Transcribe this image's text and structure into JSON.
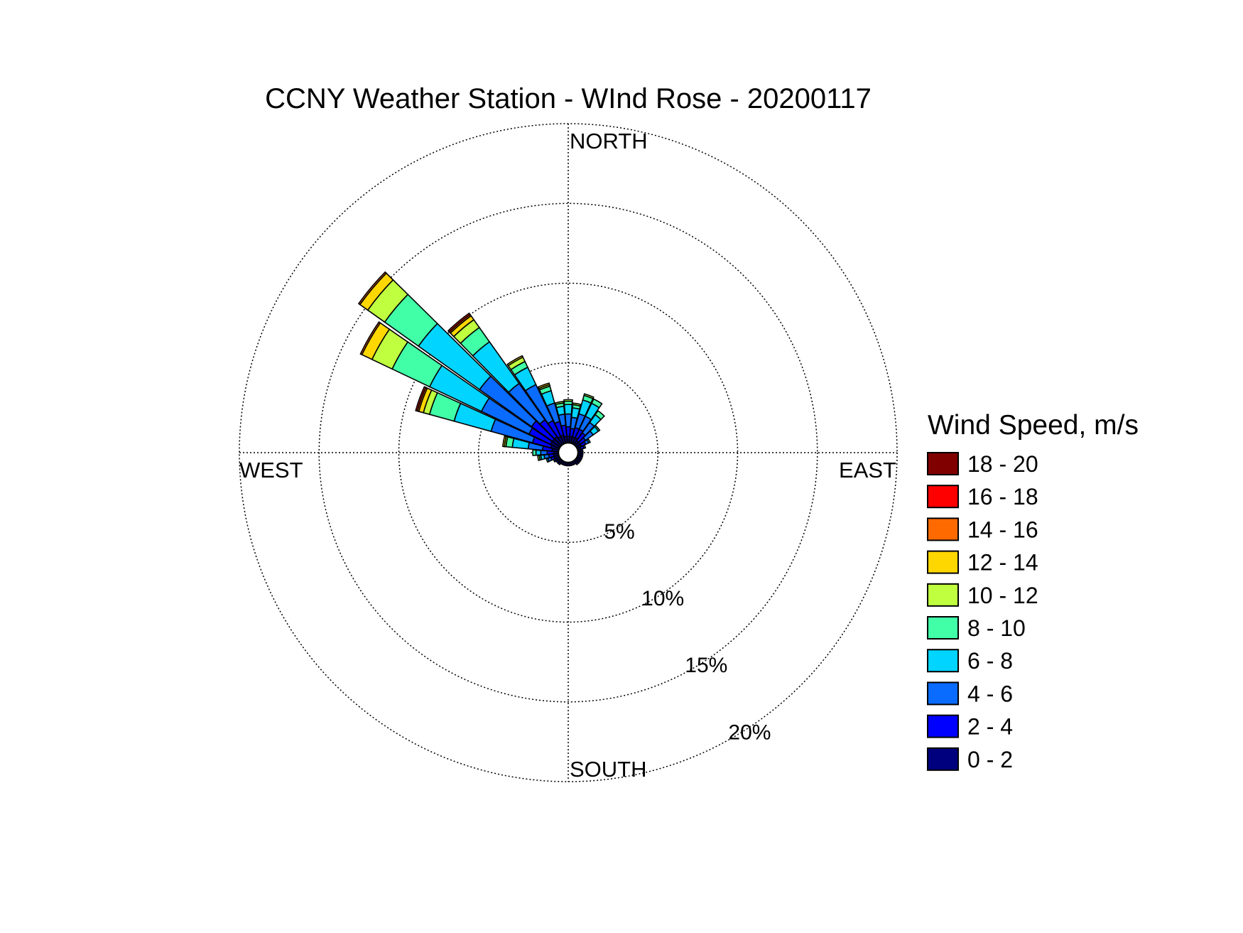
{
  "chart_data": {
    "type": "wind-rose",
    "title": "CCNY Weather Station - WInd Rose - 20200117",
    "directions": {
      "north": "NORTH",
      "east": "EAST",
      "south": "SOUTH",
      "west": "WEST"
    },
    "radial_ticks": [
      {
        "value": 5,
        "label": "5%"
      },
      {
        "value": 10,
        "label": "10%"
      },
      {
        "value": 15,
        "label": "15%"
      },
      {
        "value": 20,
        "label": "20%"
      }
    ],
    "radial_max": 20,
    "grid": true,
    "legend": {
      "title": "Wind Speed, m/s",
      "placement": "right",
      "bins": [
        {
          "label": "18 - 20",
          "color": "#800000"
        },
        {
          "label": "16 - 18",
          "color": "#ff0000"
        },
        {
          "label": "14 - 16",
          "color": "#ff6a00"
        },
        {
          "label": "12 - 14",
          "color": "#ffd700"
        },
        {
          "label": "10 - 12",
          "color": "#bfff3f"
        },
        {
          "label": "8 - 10",
          "color": "#40ffa6"
        },
        {
          "label": "6 - 8",
          "color": "#00d4ff"
        },
        {
          "label": "4 - 6",
          "color": "#0a6bff"
        },
        {
          "label": "2 - 4",
          "color": "#0000ff"
        },
        {
          "label": "0 - 2",
          "color": "#00007f"
        }
      ]
    },
    "bin_order_inner_to_outer": [
      "0 - 2",
      "2 - 4",
      "4 - 6",
      "6 - 8",
      "8 - 10",
      "10 - 12",
      "12 - 14",
      "14 - 16",
      "16 - 18",
      "18 - 20"
    ],
    "sectors": [
      {
        "direction_deg": 270,
        "segments": [
          0.3,
          0.4,
          0.4,
          0.3,
          0.2,
          0.0,
          0.0,
          0,
          0,
          0
        ]
      },
      {
        "direction_deg": 280,
        "segments": [
          0.4,
          0.6,
          0.9,
          1.0,
          0.4,
          0.1,
          0.1,
          0,
          0,
          0
        ]
      },
      {
        "direction_deg": 290,
        "segments": [
          0.5,
          1.2,
          2.7,
          2.4,
          1.6,
          0.4,
          0.3,
          0.1,
          0.1,
          0
        ]
      },
      {
        "direction_deg": 300,
        "segments": [
          0.6,
          1.5,
          3.3,
          3.6,
          2.6,
          1.4,
          0.7,
          0.1,
          0.0,
          0
        ]
      },
      {
        "direction_deg": 310,
        "segments": [
          0.6,
          1.6,
          4.0,
          4.7,
          2.6,
          1.3,
          0.6,
          0.1,
          0.0,
          0
        ]
      },
      {
        "direction_deg": 320,
        "segments": [
          0.6,
          1.3,
          2.8,
          3.2,
          1.1,
          0.6,
          0.3,
          0.1,
          0.1,
          0
        ]
      },
      {
        "direction_deg": 330,
        "segments": [
          0.5,
          1.1,
          2.5,
          1.2,
          0.4,
          0.3,
          0.1,
          0,
          0,
          0
        ]
      },
      {
        "direction_deg": 340,
        "segments": [
          0.5,
          0.9,
          1.2,
          0.8,
          0.3,
          0.1,
          0.1,
          0,
          0,
          0
        ]
      },
      {
        "direction_deg": 350,
        "segments": [
          0.4,
          0.7,
          0.7,
          0.5,
          0.2,
          0.1,
          0,
          0,
          0,
          0
        ]
      },
      {
        "direction_deg": 0,
        "segments": [
          0.4,
          0.6,
          0.8,
          0.6,
          0.2,
          0.1,
          0,
          0,
          0,
          0
        ]
      },
      {
        "direction_deg": 10,
        "segments": [
          0.4,
          0.5,
          0.7,
          0.6,
          0.2,
          0.1,
          0,
          0,
          0,
          0
        ]
      },
      {
        "direction_deg": 20,
        "segments": [
          0.4,
          0.6,
          0.9,
          0.9,
          0.3,
          0.1,
          0,
          0,
          0,
          0
        ]
      },
      {
        "direction_deg": 30,
        "segments": [
          0.4,
          0.6,
          0.9,
          0.9,
          0.3,
          0.0,
          0,
          0,
          0,
          0
        ]
      },
      {
        "direction_deg": 40,
        "segments": [
          0.3,
          0.6,
          0.8,
          0.6,
          0.3,
          0,
          0,
          0,
          0,
          0
        ]
      },
      {
        "direction_deg": 50,
        "segments": [
          0.3,
          0.4,
          0.6,
          0.4,
          0.1,
          0,
          0,
          0,
          0,
          0
        ]
      },
      {
        "direction_deg": 60,
        "segments": [
          0.3,
          0.3,
          0.2,
          0.1,
          0,
          0,
          0,
          0,
          0,
          0
        ]
      },
      {
        "direction_deg": 70,
        "segments": [
          0.2,
          0.2,
          0.1,
          0,
          0,
          0,
          0,
          0,
          0,
          0
        ]
      },
      {
        "direction_deg": 80,
        "segments": [
          0.2,
          0.1,
          0,
          0,
          0,
          0,
          0,
          0,
          0,
          0
        ]
      },
      {
        "direction_deg": 90,
        "segments": [
          0.2,
          0.1,
          0,
          0,
          0,
          0,
          0,
          0,
          0,
          0
        ]
      },
      {
        "direction_deg": 100,
        "segments": [
          0.2,
          0.1,
          0,
          0,
          0,
          0,
          0,
          0,
          0,
          0
        ]
      },
      {
        "direction_deg": 110,
        "segments": [
          0.2,
          0.1,
          0,
          0,
          0,
          0,
          0,
          0,
          0,
          0
        ]
      },
      {
        "direction_deg": 120,
        "segments": [
          0.2,
          0.1,
          0,
          0,
          0,
          0,
          0,
          0,
          0,
          0
        ]
      },
      {
        "direction_deg": 130,
        "segments": [
          0.2,
          0.1,
          0,
          0,
          0,
          0,
          0,
          0,
          0,
          0
        ]
      },
      {
        "direction_deg": 140,
        "segments": [
          0.2,
          0.1,
          0,
          0,
          0,
          0,
          0,
          0,
          0,
          0
        ]
      },
      {
        "direction_deg": 150,
        "segments": [
          0.2,
          0.0,
          0,
          0,
          0,
          0,
          0,
          0,
          0,
          0
        ]
      },
      {
        "direction_deg": 160,
        "segments": [
          0.2,
          0.0,
          0,
          0,
          0,
          0,
          0,
          0,
          0,
          0
        ]
      },
      {
        "direction_deg": 170,
        "segments": [
          0.2,
          0.0,
          0,
          0,
          0,
          0,
          0,
          0,
          0,
          0
        ]
      },
      {
        "direction_deg": 180,
        "segments": [
          0.2,
          0.0,
          0,
          0,
          0,
          0,
          0,
          0,
          0,
          0
        ]
      },
      {
        "direction_deg": 190,
        "segments": [
          0.2,
          0.0,
          0,
          0,
          0,
          0,
          0,
          0,
          0,
          0
        ]
      },
      {
        "direction_deg": 200,
        "segments": [
          0.2,
          0.0,
          0,
          0,
          0,
          0,
          0,
          0,
          0,
          0
        ]
      },
      {
        "direction_deg": 210,
        "segments": [
          0.2,
          0.0,
          0,
          0,
          0,
          0,
          0,
          0,
          0,
          0
        ]
      },
      {
        "direction_deg": 220,
        "segments": [
          0.2,
          0.1,
          0,
          0,
          0,
          0,
          0,
          0,
          0,
          0
        ]
      },
      {
        "direction_deg": 230,
        "segments": [
          0.2,
          0.1,
          0,
          0,
          0,
          0,
          0,
          0,
          0,
          0
        ]
      },
      {
        "direction_deg": 240,
        "segments": [
          0.2,
          0.1,
          0.1,
          0,
          0,
          0,
          0,
          0,
          0,
          0
        ]
      },
      {
        "direction_deg": 250,
        "segments": [
          0.3,
          0.2,
          0.2,
          0.1,
          0,
          0,
          0,
          0,
          0,
          0
        ]
      },
      {
        "direction_deg": 260,
        "segments": [
          0.3,
          0.3,
          0.3,
          0.2,
          0.1,
          0.1,
          0,
          0,
          0,
          0
        ]
      }
    ]
  }
}
